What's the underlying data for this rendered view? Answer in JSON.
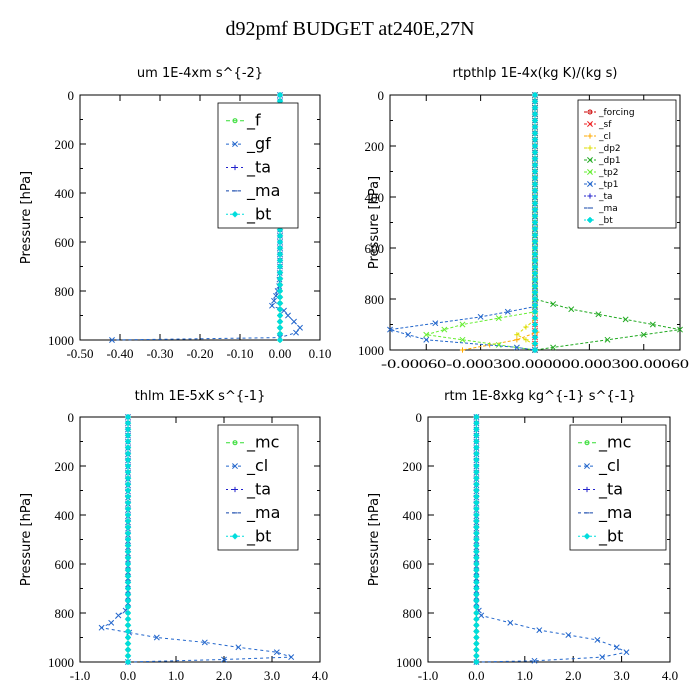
{
  "title": "d92pmf  BUDGET at240E,27N",
  "chart_data": [
    {
      "type": "line",
      "title": "um   1E-4xm s^{-2}",
      "ylabel": "Pressure [hPa]",
      "xlim": [
        -0.5,
        0.1
      ],
      "ylim": [
        1000,
        0
      ],
      "xticks": [
        "-0.50",
        "-0.40",
        "-0.30",
        "-0.20",
        "-0.10",
        "0.00",
        "0.10"
      ],
      "xtick_values": [
        -0.5,
        -0.4,
        -0.3,
        -0.2,
        -0.1,
        0.0,
        0.1
      ],
      "yticks": [
        "0",
        "200",
        "400",
        "600",
        "800",
        "1000"
      ],
      "ytick_values": [
        0,
        200,
        400,
        600,
        800,
        1000
      ],
      "legend_size": "large",
      "series": [
        {
          "name": "_f",
          "color": "#33dd33",
          "marker": "circle",
          "dash": "4,3",
          "points": [
            [
              0,
              0
            ],
            [
              0,
              500
            ],
            [
              0,
              750
            ],
            [
              0,
              800
            ],
            [
              0,
              850
            ],
            [
              0,
              900
            ],
            [
              0,
              950
            ],
            [
              0,
              1000
            ]
          ]
        },
        {
          "name": "_gf",
          "color": "#2266cc",
          "marker": "x",
          "dash": "3,3",
          "points": [
            [
              0,
              0
            ],
            [
              0,
              700
            ],
            [
              -0.002,
              780
            ],
            [
              -0.01,
              820
            ],
            [
              -0.02,
              860
            ],
            [
              0.01,
              880
            ],
            [
              0.02,
              900
            ],
            [
              0.05,
              950
            ],
            [
              0.04,
              970
            ],
            [
              0,
              990
            ],
            [
              -0.42,
              1000
            ]
          ]
        },
        {
          "name": "_ta",
          "color": "#2222cc",
          "marker": "plus",
          "dash": "2,3",
          "points": [
            [
              0,
              0
            ],
            [
              0,
              1000
            ]
          ]
        },
        {
          "name": "_ma",
          "color": "#1144aa",
          "marker": "dash",
          "dash": "3,3",
          "points": [
            [
              0,
              0
            ],
            [
              0,
              1000
            ]
          ]
        },
        {
          "name": "_bt",
          "color": "#00dddd",
          "marker": "diamond",
          "dash": "2,2",
          "points": [
            [
              0,
              0
            ],
            [
              0,
              1000
            ]
          ]
        }
      ]
    },
    {
      "type": "line",
      "title": "rtpthlp   1E-4x(kg K)/(kg s)",
      "ylabel": "Pressure [hPa]",
      "xlim": [
        -0.0008,
        0.0008
      ],
      "ylim": [
        1000,
        0
      ],
      "xtick_label_row": "-0.00060-0.000300.000000.000300.00060",
      "xticks": [],
      "xtick_values": [
        -0.0006,
        -0.0003,
        0.0,
        0.0003,
        0.0006
      ],
      "yticks": [
        "0",
        "200",
        "400",
        "600",
        "800",
        "1000"
      ],
      "ytick_values": [
        0,
        200,
        400,
        600,
        800,
        1000
      ],
      "legend_size": "small",
      "series": [
        {
          "name": "_forcing",
          "color": "#cc0000",
          "marker": "circle",
          "dash": "3,2",
          "points": [
            [
              0,
              0
            ],
            [
              0,
              1000
            ]
          ]
        },
        {
          "name": "_sf",
          "color": "#ee2222",
          "marker": "x",
          "dash": "3,2",
          "points": [
            [
              0,
              0
            ],
            [
              0,
              1000
            ]
          ]
        },
        {
          "name": "_cl",
          "color": "#ffaa00",
          "marker": "plus",
          "dash": "3,2",
          "points": [
            [
              0,
              0
            ],
            [
              0,
              900
            ],
            [
              1e-05,
              930
            ],
            [
              -0.0001,
              960
            ],
            [
              -0.0004,
              1000
            ]
          ]
        },
        {
          "name": "_dp2",
          "color": "#dddd00",
          "marker": "plus",
          "dash": "3,2",
          "points": [
            [
              0,
              0
            ],
            [
              0,
              880
            ],
            [
              -0.0001,
              940
            ],
            [
              0,
              980
            ],
            [
              0,
              1000
            ]
          ]
        },
        {
          "name": "_dp1",
          "color": "#22aa22",
          "marker": "x",
          "dash": "3,2",
          "points": [
            [
              0,
              0
            ],
            [
              0,
              800
            ],
            [
              0.0002,
              840
            ],
            [
              0.0005,
              880
            ],
            [
              0.0008,
              920
            ],
            [
              0.0004,
              960
            ],
            [
              0.0001,
              990
            ],
            [
              0,
              1000
            ]
          ]
        },
        {
          "name": "_tp2",
          "color": "#66ee33",
          "marker": "x",
          "dash": "3,2",
          "points": [
            [
              0,
              0
            ],
            [
              0,
              850
            ],
            [
              -0.0004,
              900
            ],
            [
              -0.0006,
              940
            ],
            [
              -0.0002,
              980
            ],
            [
              0,
              1000
            ]
          ]
        },
        {
          "name": "_tp1",
          "color": "#2266cc",
          "marker": "x",
          "dash": "3,2",
          "points": [
            [
              0,
              0
            ],
            [
              0,
              830
            ],
            [
              -0.0003,
              870
            ],
            [
              -0.0008,
              920
            ],
            [
              -0.0006,
              960
            ],
            [
              -0.0001,
              990
            ],
            [
              0,
              1000
            ]
          ]
        },
        {
          "name": "_ta",
          "color": "#2222cc",
          "marker": "plus",
          "dash": "2,3",
          "points": [
            [
              0,
              0
            ],
            [
              0,
              1000
            ]
          ]
        },
        {
          "name": "_ma",
          "color": "#1144aa",
          "marker": "dash",
          "dash": "3,3",
          "points": [
            [
              0,
              0
            ],
            [
              0,
              1000
            ]
          ]
        },
        {
          "name": "_bt",
          "color": "#00dddd",
          "marker": "diamond",
          "dash": "2,2",
          "points": [
            [
              0,
              0
            ],
            [
              0,
              1000
            ]
          ]
        }
      ]
    },
    {
      "type": "line",
      "title": "thlm   1E-5xK  s^{-1}",
      "ylabel": "Pressure [hPa]",
      "xlim": [
        -1.0,
        4.0
      ],
      "ylim": [
        1000,
        0
      ],
      "xticks": [
        "-1.0",
        "0.0",
        "1.0",
        "2.0",
        "3.0",
        "4.0"
      ],
      "xtick_values": [
        -1,
        0,
        1,
        2,
        3,
        4
      ],
      "yticks": [
        "0",
        "200",
        "400",
        "600",
        "800",
        "1000"
      ],
      "ytick_values": [
        0,
        200,
        400,
        600,
        800,
        1000
      ],
      "legend_size": "large",
      "series": [
        {
          "name": "_mc",
          "color": "#33dd33",
          "marker": "circle",
          "dash": "4,3",
          "points": [
            [
              0,
              0
            ],
            [
              0,
              1000
            ]
          ]
        },
        {
          "name": "_cl",
          "color": "#2266cc",
          "marker": "x",
          "dash": "3,3",
          "points": [
            [
              0,
              0
            ],
            [
              0,
              760
            ],
            [
              -0.05,
              790
            ],
            [
              -0.2,
              810
            ],
            [
              -0.35,
              840
            ],
            [
              -0.55,
              860
            ],
            [
              0.6,
              900
            ],
            [
              1.6,
              920
            ],
            [
              2.3,
              940
            ],
            [
              3.1,
              960
            ],
            [
              3.4,
              980
            ],
            [
              2.0,
              990
            ],
            [
              0,
              1000
            ]
          ]
        },
        {
          "name": "_ta",
          "color": "#2222cc",
          "marker": "plus",
          "dash": "2,3",
          "points": [
            [
              0,
              0
            ],
            [
              0,
              1000
            ]
          ]
        },
        {
          "name": "_ma",
          "color": "#1144aa",
          "marker": "dash",
          "dash": "3,3",
          "points": [
            [
              0,
              0
            ],
            [
              0,
              1000
            ]
          ]
        },
        {
          "name": "_bt",
          "color": "#00dddd",
          "marker": "diamond",
          "dash": "2,2",
          "points": [
            [
              0,
              0
            ],
            [
              0,
              1000
            ]
          ]
        }
      ]
    },
    {
      "type": "line",
      "title": "rtm   1E-8xkg kg^{-1} s^{-1}",
      "ylabel": "Pressure [hPa]",
      "xlim": [
        -1.0,
        4.0
      ],
      "ylim": [
        1000,
        0
      ],
      "xticks": [
        "-1.0",
        "0.0",
        "1.0",
        "2.0",
        "3.0",
        "4.0"
      ],
      "xtick_values": [
        -1,
        0,
        1,
        2,
        3,
        4
      ],
      "yticks": [
        "0",
        "200",
        "400",
        "600",
        "800",
        "1000"
      ],
      "ytick_values": [
        0,
        200,
        400,
        600,
        800,
        1000
      ],
      "legend_size": "large",
      "series": [
        {
          "name": "_mc",
          "color": "#33dd33",
          "marker": "circle",
          "dash": "4,3",
          "points": [
            [
              0,
              0
            ],
            [
              0,
              1000
            ]
          ]
        },
        {
          "name": "_cl",
          "color": "#2266cc",
          "marker": "x",
          "dash": "3,3",
          "points": [
            [
              0,
              0
            ],
            [
              0,
              760
            ],
            [
              0.05,
              790
            ],
            [
              0.1,
              810
            ],
            [
              0.7,
              840
            ],
            [
              1.3,
              870
            ],
            [
              1.9,
              890
            ],
            [
              2.5,
              910
            ],
            [
              2.9,
              940
            ],
            [
              3.1,
              960
            ],
            [
              2.6,
              980
            ],
            [
              1.2,
              995
            ],
            [
              0,
              1000
            ]
          ]
        },
        {
          "name": "_ta",
          "color": "#2222cc",
          "marker": "plus",
          "dash": "2,3",
          "points": [
            [
              0,
              0
            ],
            [
              0,
              1000
            ]
          ]
        },
        {
          "name": "_ma",
          "color": "#1144aa",
          "marker": "dash",
          "dash": "3,3",
          "points": [
            [
              0,
              0
            ],
            [
              0,
              1000
            ]
          ]
        },
        {
          "name": "_bt",
          "color": "#00dddd",
          "marker": "diamond",
          "dash": "2,2",
          "points": [
            [
              0,
              0
            ],
            [
              0,
              1000
            ]
          ]
        }
      ]
    }
  ]
}
